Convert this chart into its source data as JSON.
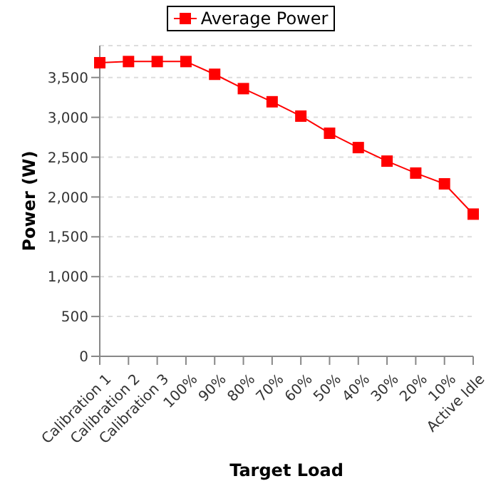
{
  "chart_data": {
    "type": "line",
    "xlabel": "Target Load",
    "ylabel": "Power (W)",
    "categories": [
      "Calibration 1",
      "Calibration 2",
      "Calibration 3",
      "100%",
      "90%",
      "80%",
      "70%",
      "60%",
      "50%",
      "40%",
      "30%",
      "20%",
      "10%",
      "Active Idle"
    ],
    "series": [
      {
        "name": "Average Power",
        "color": "#ff0000",
        "values": [
          3685,
          3700,
          3700,
          3700,
          3540,
          3360,
          3195,
          3015,
          2800,
          2620,
          2450,
          2300,
          2165,
          1785
        ]
      }
    ],
    "ylim": [
      0,
      3900
    ],
    "yticks": [
      {
        "value": 0,
        "label": "0"
      },
      {
        "value": 500,
        "label": "500"
      },
      {
        "value": 1000,
        "label": "1,000"
      },
      {
        "value": 1500,
        "label": "1,500"
      },
      {
        "value": 2000,
        "label": "2,000"
      },
      {
        "value": 2500,
        "label": "2,500"
      },
      {
        "value": 3000,
        "label": "3,000"
      },
      {
        "value": 3500,
        "label": "3,500"
      }
    ],
    "grid": "y",
    "legend": "top",
    "marker": "square",
    "line_style": "solid"
  }
}
